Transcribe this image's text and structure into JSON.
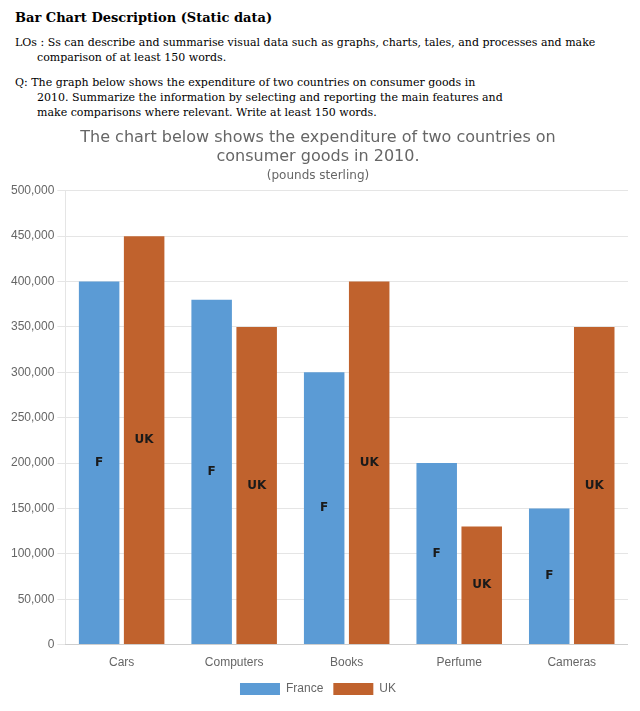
{
  "chart_data": {
    "type": "bar",
    "annotations": [
      "Bar Chart Description (Static data)",
      "LOs : Ss can describe and summarise visual data such as graphs, charts, tales, and processes and make",
      "comparison of at least 150 words.",
      "Q: The graph below shows the expenditure of two countries on consumer goods in",
      "2010. Summarize the information by selecting and reporting the main features and",
      "make comparisons where relevant. Write at least 150 words."
    ],
    "title": [
      "The chart below shows the expenditure of two countries on",
      "consumer goods in 2010."
    ],
    "subtitle": "(pounds sterling)",
    "categories": [
      "Cars",
      "Computers",
      "Books",
      "Perfume",
      "Cameras"
    ],
    "series": [
      {
        "name": "France",
        "color": "#5B9BD5",
        "values": [
          400000,
          380000,
          300000,
          200000,
          150000
        ],
        "annotation": "F"
      },
      {
        "name": "UK",
        "color": "#C0622D",
        "values": [
          450000,
          350000,
          400000,
          130000,
          350000
        ],
        "annotation": "UK"
      }
    ],
    "ylim": [
      0,
      500000
    ],
    "yticks": [
      0,
      {
        "value": 50000,
        "label": "50,000"
      },
      {
        "value": 100000,
        "label": "100,000"
      },
      {
        "value": 150000,
        "label": "150,000"
      },
      {
        "value": 200000,
        "label": "200,000"
      },
      {
        "value": 250000,
        "label": "250,000"
      },
      {
        "value": 300000,
        "label": "300,000"
      },
      {
        "value": 350000,
        "label": "350,000"
      },
      {
        "value": 400000,
        "label": "400,000"
      },
      {
        "value": 450000,
        "label": "450,000"
      },
      {
        "value": 500000,
        "label": "500,000"
      }
    ],
    "grid": true,
    "legend": "bottom"
  }
}
